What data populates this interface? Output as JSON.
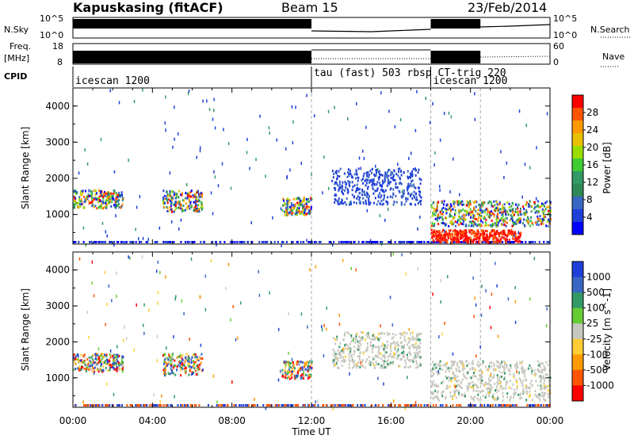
{
  "header": {
    "station": "Kapuskasing (fitACF)",
    "beam": "Beam 15",
    "date": "23/Feb/2014"
  },
  "top_panels": {
    "nsky_label": "N.Sky",
    "nsky_ticks": [
      "10^5",
      "10^0"
    ],
    "nsky_right_ticks": [
      "10^5",
      "10^0"
    ],
    "nsearch_label": "N.Search",
    "freq_label": "Freq.",
    "freq_unit": "[MHz]",
    "freq_ticks": [
      "18",
      "8"
    ],
    "freq_right_ticks": [
      "60",
      "0"
    ],
    "nave_label": "Nave",
    "cpid_label": "CPID",
    "cpid_modes": [
      {
        "label": "icescan 1200",
        "start_h": 0,
        "end_h": 12
      },
      {
        "label": "tau (fast) 503 rbsp CT-trig 220",
        "start_h": 12,
        "end_h": 18
      },
      {
        "label": "icescan 1200",
        "start_h": 18,
        "end_h": 20.5
      }
    ]
  },
  "chart_data": [
    {
      "type": "heatmap",
      "title": "",
      "xlabel": "",
      "ylabel": "Slant Range [km]",
      "yticks": [
        1000,
        2000,
        3000,
        4000
      ],
      "ylim": [
        180,
        4500
      ],
      "xlim_hours": [
        0,
        24
      ],
      "colorbar_label": "Power [dB]",
      "colorbar_ticks": [
        "28",
        "24",
        "20",
        "16",
        "12",
        "8",
        "4"
      ],
      "colorbar_colors": [
        "#ff0000",
        "#ff5500",
        "#ff9900",
        "#e8c000",
        "#99dd00",
        "#3fcc33",
        "#339966",
        "#2e8b57",
        "#3a66c4",
        "#1f3fd9",
        "#0000ff"
      ],
      "scatter_regions": [
        {
          "start_h": 0.0,
          "end_h": 2.5,
          "r_lo": 1200,
          "r_hi": 1700,
          "level": "mixed"
        },
        {
          "start_h": 4.5,
          "end_h": 6.5,
          "r_lo": 1100,
          "r_hi": 1700,
          "level": "mixed"
        },
        {
          "start_h": 10.5,
          "end_h": 12.0,
          "r_lo": 1000,
          "r_hi": 1500,
          "level": "mixed"
        },
        {
          "start_h": 13.0,
          "end_h": 17.5,
          "r_lo": 1300,
          "r_hi": 2300,
          "level": "low"
        },
        {
          "start_h": 18.0,
          "end_h": 24.0,
          "r_lo": 700,
          "r_hi": 1400,
          "level": "mixed"
        },
        {
          "start_h": 18.0,
          "end_h": 22.5,
          "r_lo": 250,
          "r_hi": 600,
          "level": "high"
        }
      ]
    },
    {
      "type": "heatmap",
      "title": "",
      "xlabel": "Time UT",
      "ylabel": "Slant Range [km]",
      "yticks": [
        1000,
        2000,
        3000,
        4000
      ],
      "ylim": [
        180,
        4500
      ],
      "xlim_hours": [
        0,
        24
      ],
      "xticks": [
        "00:00",
        "04:00",
        "08:00",
        "12:00",
        "16:00",
        "20:00",
        "00:00"
      ],
      "colorbar_label": "Velocity [m s^-1]",
      "colorbar_ticks": [
        "1000",
        "500",
        "100",
        "25",
        "-25",
        "-100",
        "-500",
        "-1000"
      ],
      "colorbar_colors": [
        "#1f3fd9",
        "#3a66c4",
        "#339966",
        "#66cc33",
        "#c8c8c0",
        "#ffcc33",
        "#ff9900",
        "#ff5500",
        "#ff0000"
      ],
      "scatter_regions": [
        {
          "start_h": 0.0,
          "end_h": 2.5,
          "r_lo": 1200,
          "r_hi": 1700,
          "level": "mixed"
        },
        {
          "start_h": 4.5,
          "end_h": 6.5,
          "r_lo": 1100,
          "r_hi": 1700,
          "level": "mixed"
        },
        {
          "start_h": 10.5,
          "end_h": 12.0,
          "r_lo": 1000,
          "r_hi": 1500,
          "level": "mixed"
        },
        {
          "start_h": 13.0,
          "end_h": 17.5,
          "r_lo": 1300,
          "r_hi": 2300,
          "level": "gray"
        },
        {
          "start_h": 18.0,
          "end_h": 24.0,
          "r_lo": 400,
          "r_hi": 1500,
          "level": "gray"
        }
      ]
    }
  ]
}
